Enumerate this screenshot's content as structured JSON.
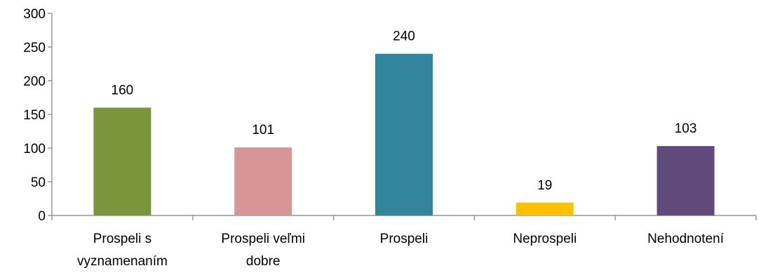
{
  "chart_data": {
    "type": "bar",
    "categories": [
      [
        "Prospeli s",
        "vyznamenaním"
      ],
      [
        "Prospeli veľmi",
        "dobre"
      ],
      [
        "Prospeli"
      ],
      [
        "Neprospeli"
      ],
      [
        "Nehodnotení"
      ]
    ],
    "values": [
      160,
      101,
      240,
      19,
      103
    ],
    "data_labels": [
      "160",
      "101",
      "240",
      "19",
      "103"
    ],
    "colors": [
      "#7a963d",
      "#d99595",
      "#31849b",
      "#ffc000",
      "#604a7b"
    ],
    "ylim": [
      0,
      300
    ],
    "yticks": [
      0,
      50,
      100,
      150,
      200,
      250,
      300
    ],
    "ytick_labels": [
      "0",
      "50",
      "100",
      "150",
      "200",
      "250",
      "300"
    ],
    "title": "",
    "xlabel": "",
    "ylabel": "",
    "grid": false,
    "legend": "none"
  }
}
